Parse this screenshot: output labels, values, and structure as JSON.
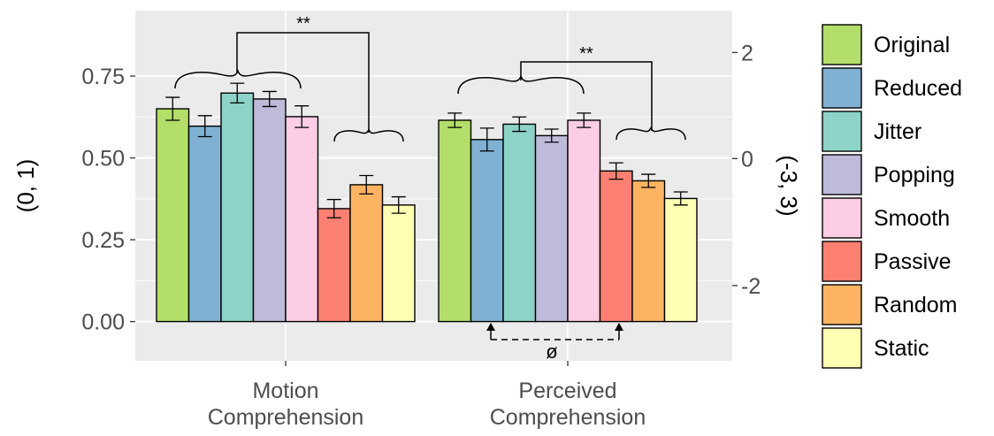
{
  "chart_data": {
    "type": "bar",
    "categories": [
      "Motion\nComprehension",
      "Perceived\nComprehension"
    ],
    "ylabel_left": "(0, 1)",
    "ylabel_right": "(-3, 3)",
    "ylim": [
      -0.12,
      0.95
    ],
    "yticks_left": [
      0.0,
      0.25,
      0.5,
      0.75
    ],
    "yticks_left_labels": [
      "0.00",
      "0.25",
      "0.50",
      "0.75"
    ],
    "yticks_right_labels": [
      "-2",
      "0",
      "2"
    ],
    "series": [
      {
        "name": "Original",
        "color": "#b3de69",
        "values": [
          0.65,
          0.615
        ],
        "errors": [
          0.035,
          0.022
        ]
      },
      {
        "name": "Reduced",
        "color": "#80b1d3",
        "values": [
          0.597,
          0.556
        ],
        "errors": [
          0.032,
          0.035
        ]
      },
      {
        "name": "Jitter",
        "color": "#8dd3c7",
        "values": [
          0.698,
          0.603
        ],
        "errors": [
          0.03,
          0.022
        ]
      },
      {
        "name": "Popping",
        "color": "#bebada",
        "values": [
          0.68,
          0.568
        ],
        "errors": [
          0.023,
          0.02
        ]
      },
      {
        "name": "Smooth",
        "color": "#fccde5",
        "values": [
          0.626,
          0.615
        ],
        "errors": [
          0.033,
          0.022
        ]
      },
      {
        "name": "Passive",
        "color": "#fb8072",
        "values": [
          0.345,
          0.46
        ],
        "errors": [
          0.028,
          0.025
        ]
      },
      {
        "name": "Random",
        "color": "#fdb462",
        "values": [
          0.418,
          0.43
        ],
        "errors": [
          0.028,
          0.02
        ]
      },
      {
        "name": "Static",
        "color": "#ffffb3",
        "values": [
          0.356,
          0.376
        ],
        "errors": [
          0.025,
          0.02
        ]
      }
    ],
    "annotations": [
      {
        "text": "**",
        "group": 0
      },
      {
        "text": "**",
        "group": 1
      },
      {
        "text": "ø",
        "group": 1
      }
    ],
    "grid": true,
    "legend_position": "right"
  }
}
